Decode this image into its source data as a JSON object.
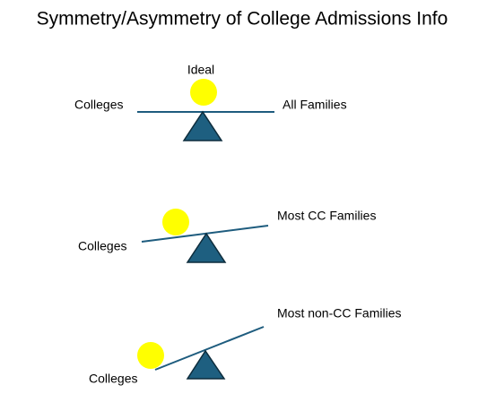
{
  "title": "Symmetry/Asymmetry of College Admissions Info",
  "scales": [
    {
      "top_label": "Ideal",
      "left_label": "Colleges",
      "right_label": "All Families"
    },
    {
      "left_label": "Colleges",
      "right_label": "Most CC Families"
    },
    {
      "left_label": "Colleges",
      "right_label": "Most non-CC Families"
    }
  ]
}
